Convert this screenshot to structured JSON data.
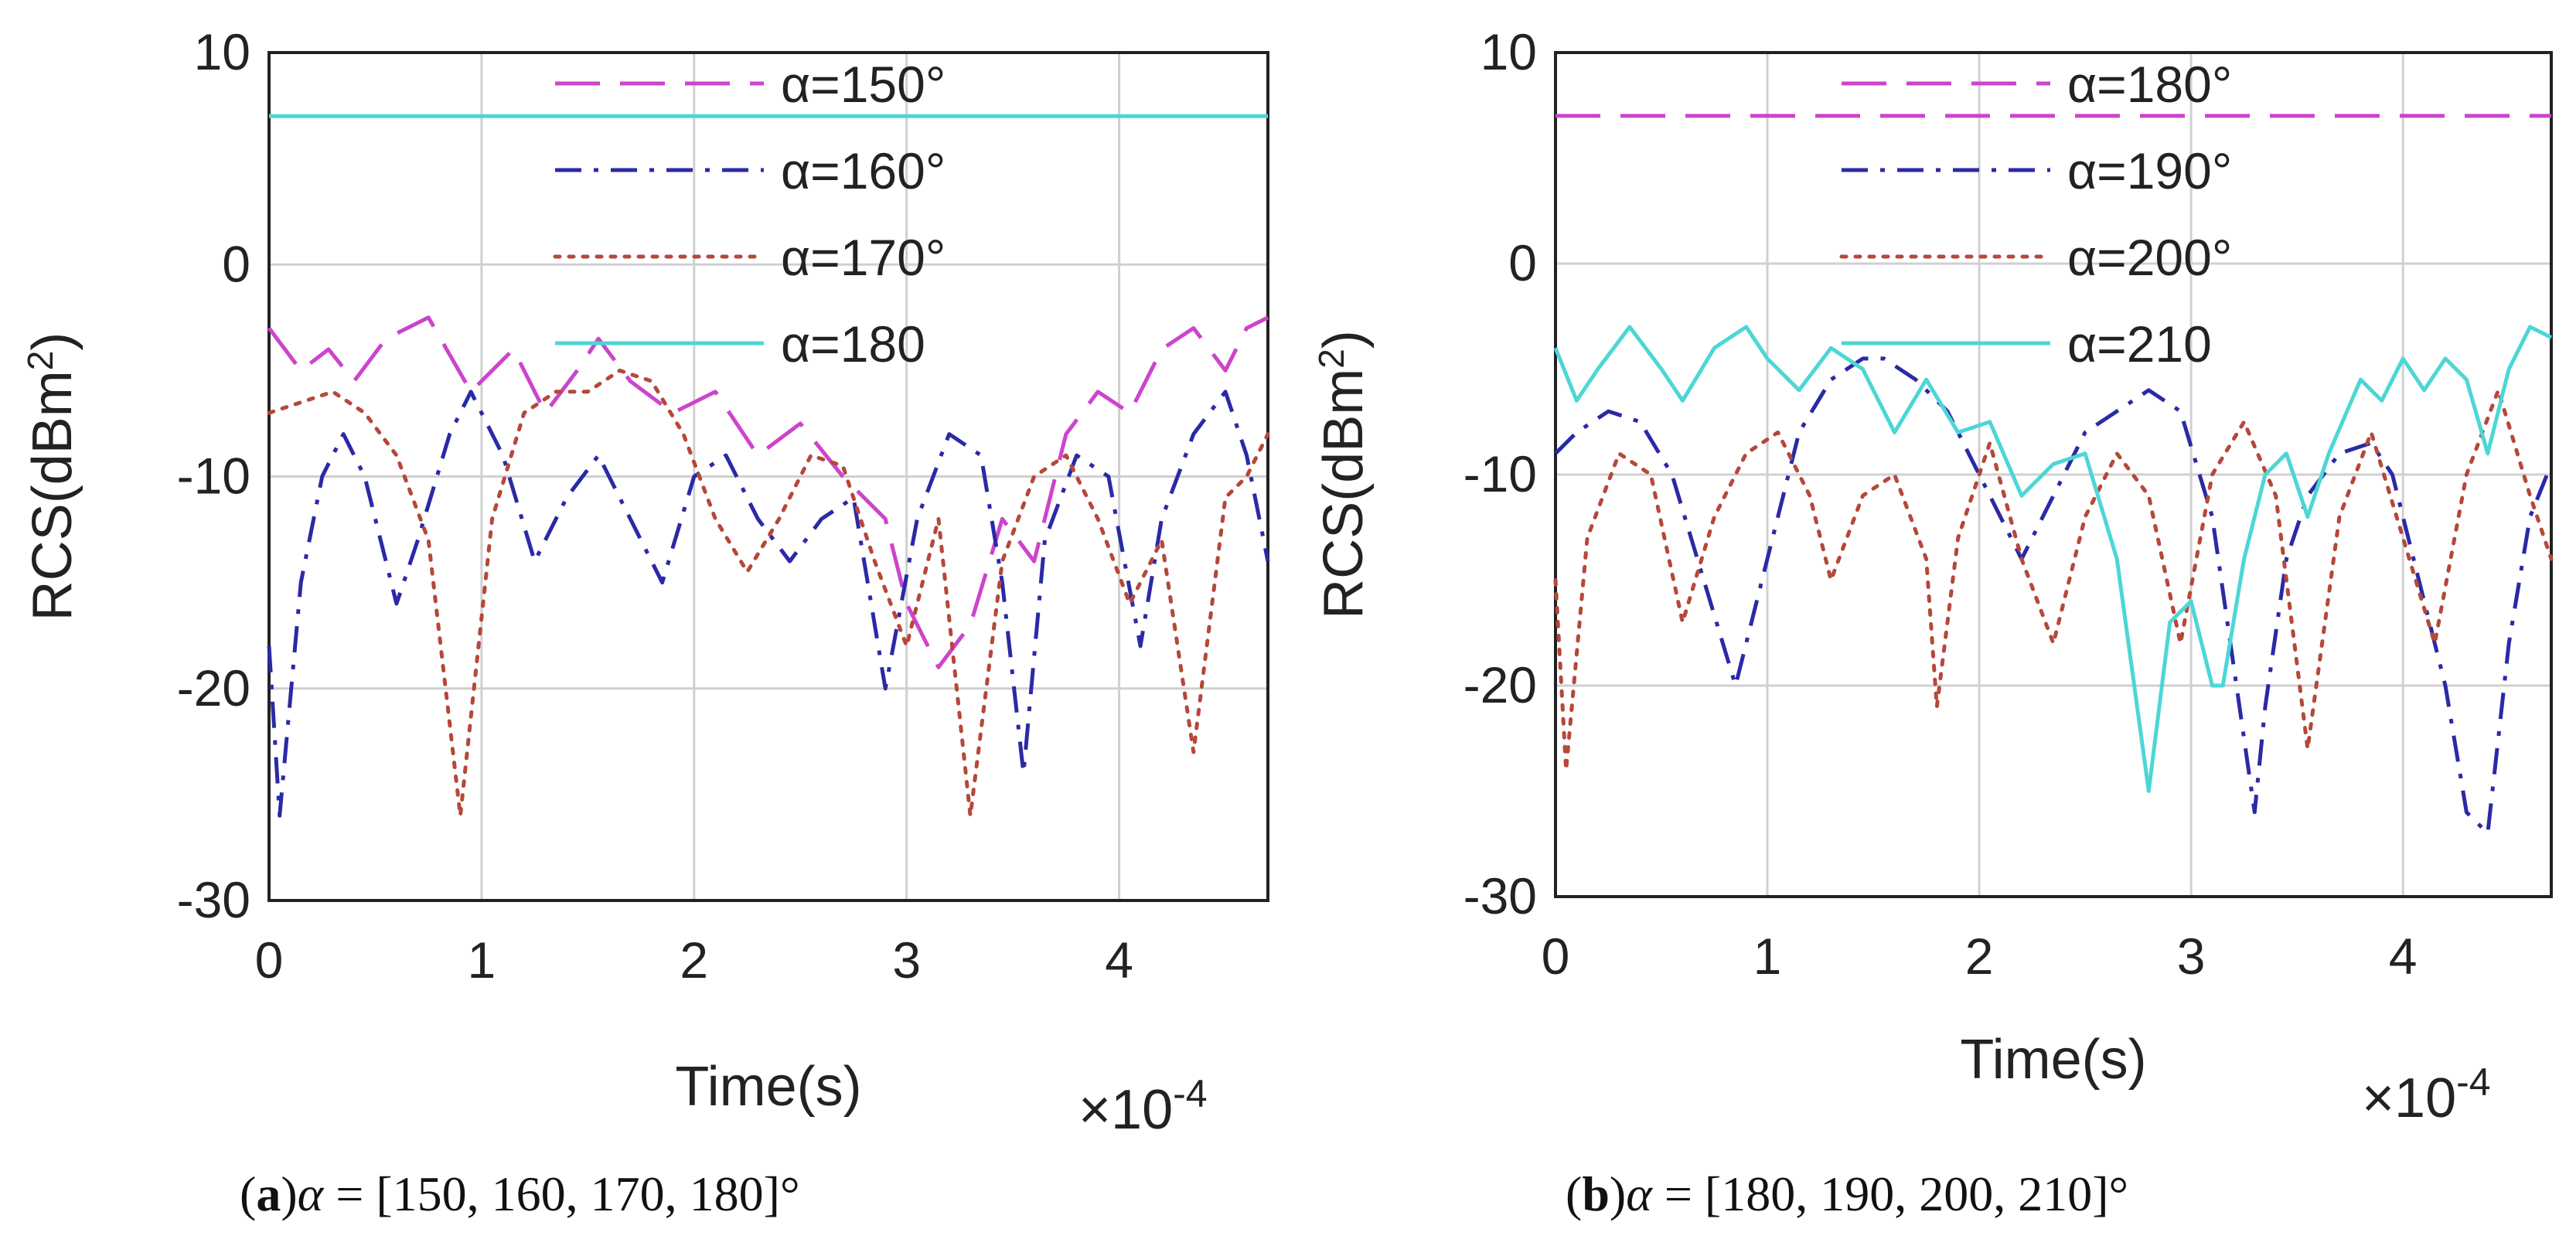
{
  "figure": {
    "captions": [
      {
        "label": "a",
        "text": " α = [150, 160, 170, 180]°"
      },
      {
        "label": "b",
        "text": " α = [180, 190, 200, 210]°"
      }
    ]
  },
  "colors": {
    "magenta": "#cc44cc",
    "blue": "#2a2aa6",
    "red": "#b5483a",
    "cyan": "#4dd6d6",
    "grid": "#d0d0d0",
    "axis": "#222222"
  },
  "chart_data": [
    {
      "type": "line",
      "title": "",
      "xlabel": "Time(s)",
      "ylabel": "RCS(dBm²)",
      "ylabel_base": "RCS(dBm",
      "ylabel_sup": "2",
      "ylabel_end": ")",
      "x_multiplier": "×10",
      "x_multiplier_exp": "-4",
      "xlim": [
        0,
        4.7
      ],
      "ylim": [
        -30,
        10
      ],
      "xticks": [
        0,
        1,
        2,
        3,
        4
      ],
      "yticks": [
        10,
        0,
        -10,
        -20,
        -30
      ],
      "grid": true,
      "legend_position": "top",
      "series": [
        {
          "name": "α=150°",
          "style": "dashed",
          "color": "magenta",
          "x": [
            0,
            0.15,
            0.28,
            0.4,
            0.55,
            0.75,
            0.95,
            1.15,
            1.3,
            1.45,
            1.55,
            1.7,
            1.9,
            2.1,
            2.3,
            2.5,
            2.7,
            2.9,
            3.0,
            3.15,
            3.3,
            3.45,
            3.6,
            3.75,
            3.9,
            4.05,
            4.2,
            4.35,
            4.5,
            4.6,
            4.7
          ],
          "y": [
            -3,
            -5,
            -4,
            -5.5,
            -3.5,
            -2.5,
            -6,
            -4,
            -7,
            -5,
            -3.5,
            -5.5,
            -7,
            -6,
            -9,
            -7.5,
            -10,
            -12,
            -16,
            -19,
            -17,
            -12,
            -14,
            -8,
            -6,
            -7,
            -4,
            -3,
            -5,
            -3,
            -2.5
          ]
        },
        {
          "name": "α=160°",
          "style": "dashdot",
          "color": "blue",
          "x": [
            0,
            0.05,
            0.15,
            0.25,
            0.35,
            0.45,
            0.6,
            0.7,
            0.85,
            0.95,
            1.1,
            1.25,
            1.4,
            1.55,
            1.7,
            1.85,
            2.0,
            2.15,
            2.3,
            2.45,
            2.6,
            2.75,
            2.9,
            3.05,
            3.2,
            3.35,
            3.45,
            3.55,
            3.65,
            3.8,
            3.95,
            4.1,
            4.2,
            4.35,
            4.5,
            4.6,
            4.7
          ],
          "y": [
            -18,
            -26,
            -15,
            -10,
            -8,
            -10,
            -16,
            -13,
            -8,
            -6,
            -9,
            -14,
            -11,
            -9,
            -12,
            -15,
            -10,
            -9,
            -12,
            -14,
            -12,
            -11,
            -20,
            -12,
            -8,
            -9,
            -15,
            -24,
            -13,
            -9,
            -10,
            -18,
            -12,
            -8,
            -6,
            -9,
            -14
          ]
        },
        {
          "name": "α=170°",
          "style": "dotted",
          "color": "red",
          "x": [
            0,
            0.15,
            0.3,
            0.45,
            0.6,
            0.75,
            0.9,
            1.05,
            1.2,
            1.35,
            1.5,
            1.65,
            1.8,
            1.95,
            2.1,
            2.25,
            2.4,
            2.55,
            2.7,
            2.85,
            3.0,
            3.15,
            3.3,
            3.45,
            3.6,
            3.75,
            3.9,
            4.05,
            4.2,
            4.35,
            4.5,
            4.6,
            4.7
          ],
          "y": [
            -7,
            -6.5,
            -6,
            -7,
            -9,
            -13,
            -26,
            -12,
            -7,
            -6,
            -6,
            -5,
            -5.5,
            -8,
            -12,
            -14.5,
            -12,
            -9,
            -9.5,
            -14,
            -18,
            -12,
            -26,
            -14,
            -10,
            -9,
            -12,
            -16,
            -13,
            -23,
            -11,
            -10,
            -8
          ]
        },
        {
          "name": "α=180",
          "style": "solid",
          "color": "cyan",
          "x": [
            0,
            4.7
          ],
          "y": [
            7,
            7
          ]
        }
      ]
    },
    {
      "type": "line",
      "title": "",
      "xlabel": "Time(s)",
      "ylabel": "RCS(dBm²)",
      "ylabel_base": "RCS(dBm",
      "ylabel_sup": "2",
      "ylabel_end": ")",
      "x_multiplier": "×10",
      "x_multiplier_exp": "-4",
      "xlim": [
        0,
        4.7
      ],
      "ylim": [
        -30,
        10
      ],
      "xticks": [
        0,
        1,
        2,
        3,
        4
      ],
      "yticks": [
        10,
        0,
        -10,
        -20,
        -30
      ],
      "grid": true,
      "legend_position": "top",
      "series": [
        {
          "name": "α=180°",
          "style": "dashed",
          "color": "magenta",
          "x": [
            0,
            4.7
          ],
          "y": [
            7,
            7
          ]
        },
        {
          "name": "α=190°",
          "style": "dashdot",
          "color": "blue",
          "x": [
            0,
            0.1,
            0.25,
            0.4,
            0.55,
            0.7,
            0.85,
            1.0,
            1.15,
            1.3,
            1.45,
            1.55,
            1.7,
            1.85,
            2.0,
            2.2,
            2.35,
            2.5,
            2.65,
            2.8,
            2.95,
            3.1,
            3.2,
            3.3,
            3.35,
            3.45,
            3.55,
            3.7,
            3.85,
            3.95,
            4.05,
            4.2,
            4.3,
            4.4,
            4.5,
            4.6,
            4.7
          ],
          "y": [
            -9,
            -8,
            -7,
            -7.5,
            -10,
            -15,
            -20,
            -14,
            -8,
            -5.5,
            -4.5,
            -4.5,
            -5.5,
            -7,
            -10,
            -14,
            -11,
            -8,
            -7,
            -6,
            -7,
            -12,
            -19,
            -26,
            -21,
            -14,
            -11,
            -9,
            -8.5,
            -10,
            -14,
            -20,
            -26,
            -27,
            -18,
            -12,
            -9.5
          ]
        },
        {
          "name": "α=200°",
          "style": "dotted",
          "color": "red",
          "x": [
            0,
            0.05,
            0.15,
            0.3,
            0.45,
            0.6,
            0.75,
            0.9,
            1.05,
            1.2,
            1.3,
            1.45,
            1.6,
            1.75,
            1.8,
            1.9,
            2.05,
            2.2,
            2.35,
            2.5,
            2.65,
            2.8,
            2.95,
            3.1,
            3.25,
            3.4,
            3.55,
            3.7,
            3.85,
            4.0,
            4.15,
            4.3,
            4.45,
            4.6,
            4.7
          ],
          "y": [
            -15,
            -24,
            -13,
            -9,
            -10,
            -17,
            -12,
            -9,
            -8,
            -11,
            -15,
            -11,
            -10,
            -14,
            -21,
            -13,
            -8.5,
            -14,
            -18,
            -12,
            -9,
            -11,
            -18,
            -10,
            -7.5,
            -11,
            -23,
            -12,
            -8,
            -13,
            -18,
            -10,
            -6,
            -11,
            -14
          ]
        },
        {
          "name": "α=210",
          "style": "solid",
          "color": "cyan",
          "x": [
            0,
            0.1,
            0.2,
            0.35,
            0.5,
            0.6,
            0.75,
            0.9,
            1.0,
            1.15,
            1.3,
            1.45,
            1.6,
            1.75,
            1.9,
            2.05,
            2.2,
            2.35,
            2.5,
            2.65,
            2.8,
            2.9,
            3.0,
            3.1,
            3.15,
            3.25,
            3.35,
            3.45,
            3.55,
            3.65,
            3.8,
            3.9,
            4.0,
            4.1,
            4.2,
            4.3,
            4.4,
            4.5,
            4.6,
            4.7
          ],
          "y": [
            -4,
            -6.5,
            -5,
            -3,
            -5,
            -6.5,
            -4,
            -3,
            -4.5,
            -6,
            -4,
            -5,
            -8,
            -5.5,
            -8,
            -7.5,
            -11,
            -9.5,
            -9,
            -14,
            -25,
            -17,
            -16,
            -20,
            -20,
            -14,
            -10,
            -9,
            -12,
            -9,
            -5.5,
            -6.5,
            -4.5,
            -6,
            -4.5,
            -5.5,
            -9,
            -5,
            -3,
            -3.5
          ]
        }
      ]
    }
  ]
}
